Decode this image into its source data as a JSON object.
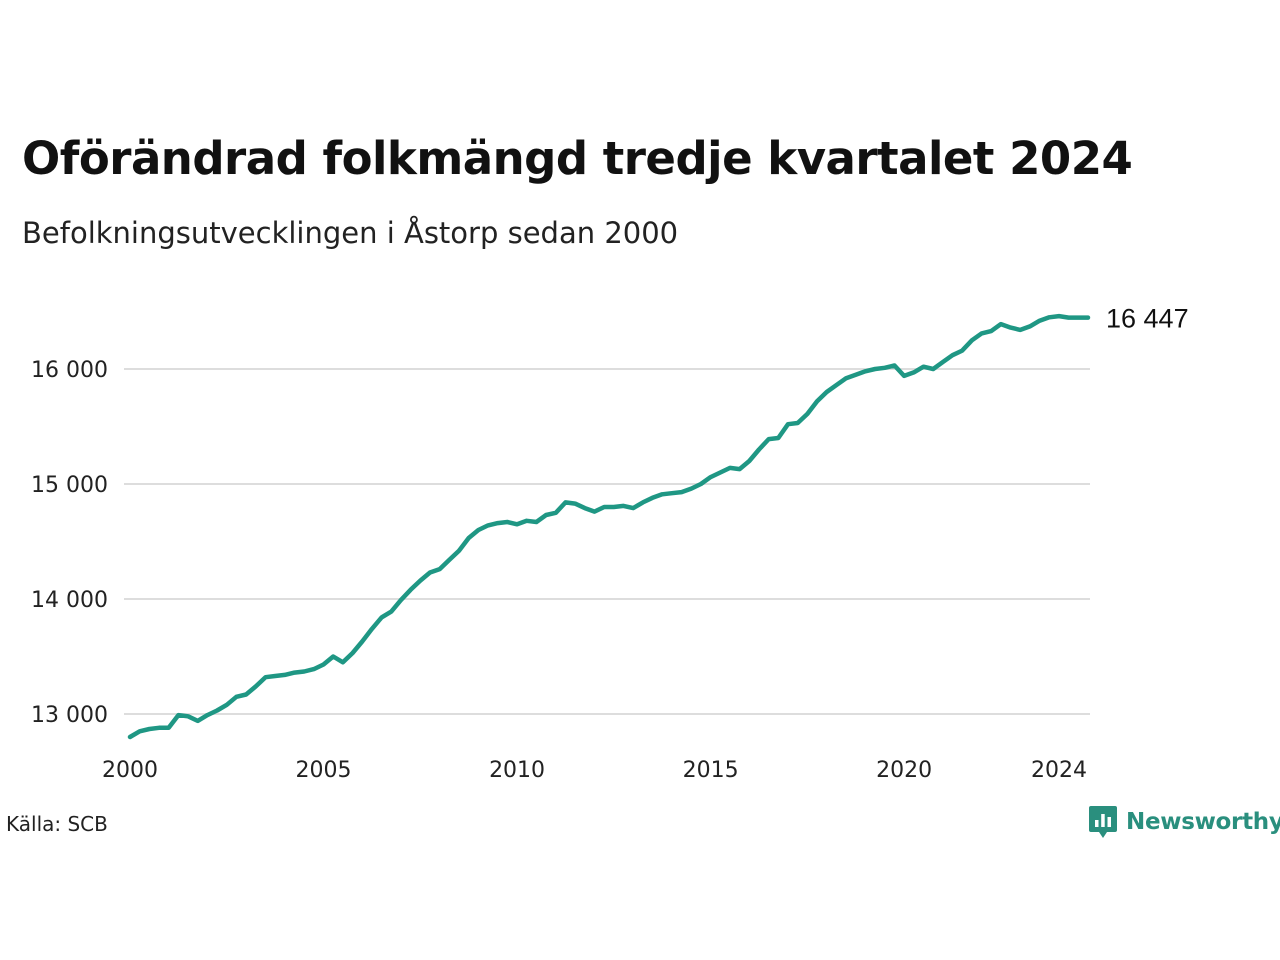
{
  "title": "Oförändrad folkmängd tredje kvartalet 2024",
  "subtitle": "Befolkningsutvecklingen i Åstorp sedan 2000",
  "source": "Källa: SCB",
  "brand": {
    "name": "Newsworthy",
    "icon": "newsworthy-logo-icon",
    "color": "#2a8f7e"
  },
  "chart_data": {
    "type": "line",
    "title": "Oförändrad folkmängd tredje kvartalet 2024",
    "subtitle": "Befolkningsutvecklingen i Åstorp sedan 2000",
    "xlabel": "",
    "ylabel": "",
    "xlim": [
      2000,
      2024.75
    ],
    "ylim": [
      12600,
      16600
    ],
    "x_ticks": [
      2000,
      2005,
      2010,
      2015,
      2020,
      2024
    ],
    "x_tick_labels": [
      "2000",
      "2005",
      "2010",
      "2015",
      "2020",
      "2024"
    ],
    "y_ticks": [
      13000,
      14000,
      15000,
      16000
    ],
    "y_tick_labels": [
      "13 000",
      "14 000",
      "15 000",
      "16 000"
    ],
    "grid": "horizontal",
    "line_color": "#1f9784",
    "end_label": "16 447",
    "series": [
      {
        "x": [
          2000.0,
          2000.25,
          2000.5,
          2000.75,
          2001.0,
          2001.25,
          2001.5,
          2001.75,
          2002.0,
          2002.25,
          2002.5,
          2002.75,
          2003.0,
          2003.25,
          2003.5,
          2003.75,
          2004.0,
          2004.25,
          2004.5,
          2004.75,
          2005.0,
          2005.25,
          2005.5,
          2005.75,
          2006.0,
          2006.25,
          2006.5,
          2006.75,
          2007.0,
          2007.25,
          2007.5,
          2007.75,
          2008.0,
          2008.25,
          2008.5,
          2008.75,
          2009.0,
          2009.25,
          2009.5,
          2009.75,
          2010.0,
          2010.25,
          2010.5,
          2010.75,
          2011.0,
          2011.25,
          2011.5,
          2011.75,
          2012.0,
          2012.25,
          2012.5,
          2012.75,
          2013.0,
          2013.25,
          2013.5,
          2013.75,
          2014.0,
          2014.25,
          2014.5,
          2014.75,
          2015.0,
          2015.25,
          2015.5,
          2015.75,
          2016.0,
          2016.25,
          2016.5,
          2016.75,
          2017.0,
          2017.25,
          2017.5,
          2017.75,
          2018.0,
          2018.25,
          2018.5,
          2018.75,
          2019.0,
          2019.25,
          2019.5,
          2019.75,
          2020.0,
          2020.25,
          2020.5,
          2020.75,
          2021.0,
          2021.25,
          2021.5,
          2021.75,
          2022.0,
          2022.25,
          2022.5,
          2022.75,
          2023.0,
          2023.25,
          2023.5,
          2023.75,
          2024.0,
          2024.25,
          2024.5,
          2024.75
        ],
        "values": [
          12800,
          12850,
          12870,
          12880,
          12880,
          12990,
          12980,
          12940,
          12990,
          13030,
          13080,
          13150,
          13170,
          13240,
          13320,
          13330,
          13340,
          13360,
          13370,
          13390,
          13430,
          13500,
          13450,
          13530,
          13630,
          13740,
          13840,
          13890,
          13990,
          14080,
          14160,
          14230,
          14260,
          14340,
          14420,
          14530,
          14600,
          14640,
          14660,
          14670,
          14650,
          14680,
          14670,
          14730,
          14750,
          14840,
          14830,
          14790,
          14760,
          14800,
          14800,
          14810,
          14790,
          14840,
          14880,
          14910,
          14920,
          14930,
          14960,
          15000,
          15060,
          15100,
          15140,
          15130,
          15200,
          15300,
          15390,
          15400,
          15520,
          15530,
          15610,
          15720,
          15800,
          15860,
          15920,
          15950,
          15980,
          16000,
          16010,
          16030,
          15940,
          15970,
          16020,
          16000,
          16060,
          16120,
          16160,
          16250,
          16310,
          16330,
          16390,
          16360,
          16340,
          16370,
          16420,
          16450,
          16460,
          16447,
          16447,
          16447
        ]
      }
    ]
  }
}
